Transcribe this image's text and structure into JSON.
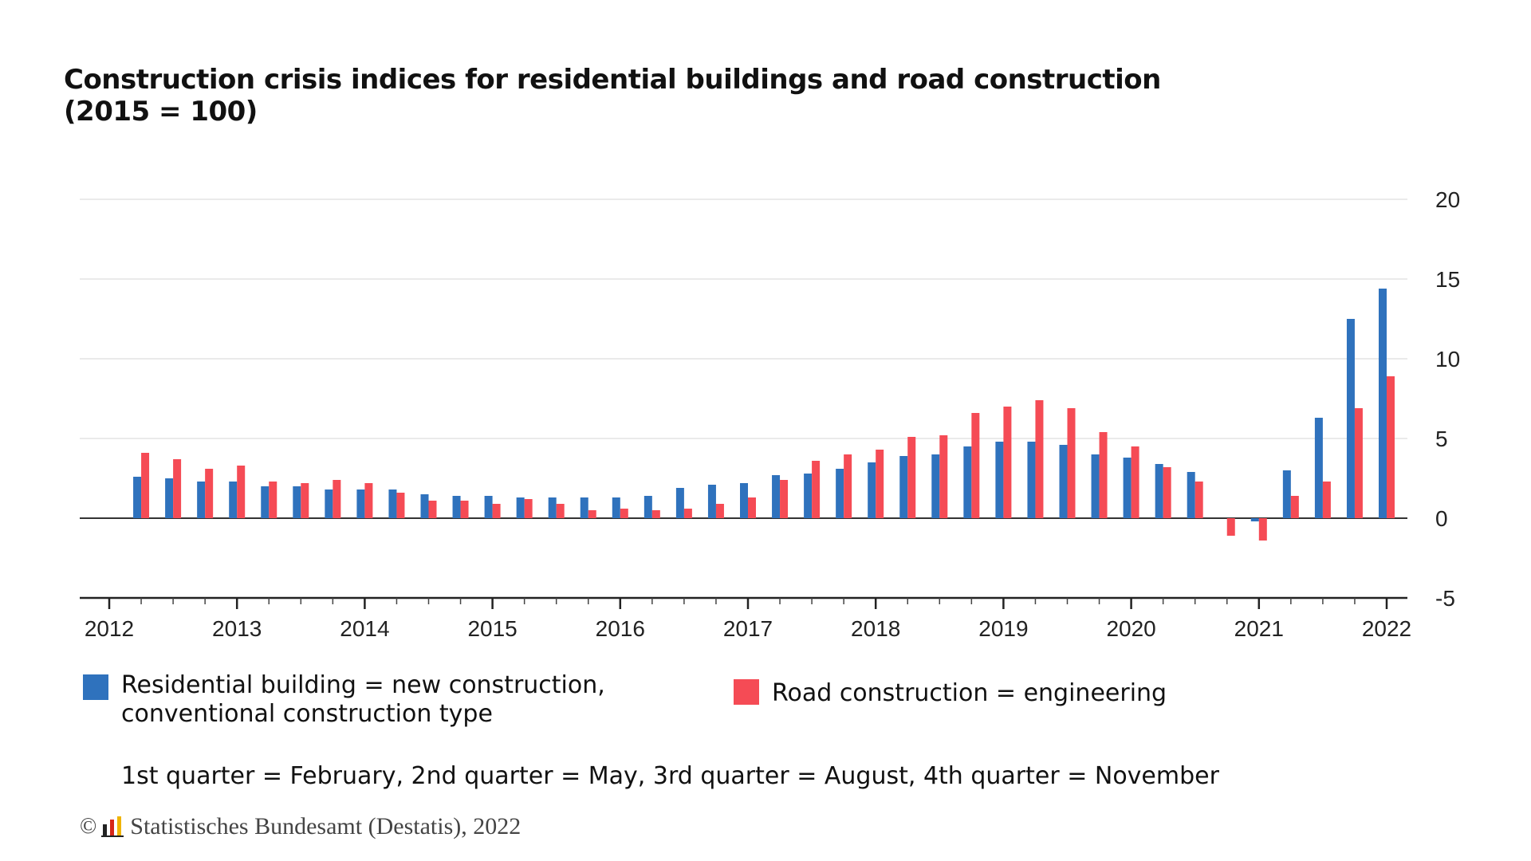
{
  "title": {
    "line1": "Construction crisis indices for residential buildings and road construction",
    "line2": "(2015 = 100)"
  },
  "legend": [
    {
      "label": "Residential building = new construction,\nconventional construction type",
      "color": "#2f72bd"
    },
    {
      "label": "Road construction = engineering",
      "color": "#f54b55"
    }
  ],
  "footnote": "1st quarter = February, 2nd quarter = May, 3rd quarter = August, 4th quarter = November",
  "source": {
    "copyright": "©",
    "text": "Statistisches Bundesamt (Destatis), 2022"
  },
  "chart_data": {
    "type": "bar",
    "title": "Construction crisis indices for residential buildings and road construction (2015 = 100)",
    "x_ticks": [
      "2012",
      "2013",
      "2014",
      "2015",
      "2016",
      "2017",
      "2018",
      "2019",
      "2020",
      "2021",
      "2022"
    ],
    "y_ticks": [
      20,
      15,
      10,
      5,
      0,
      -5
    ],
    "ylim": [
      -5,
      20
    ],
    "y_axis_side": "right",
    "grid": true,
    "legend_position": "bottom",
    "categories": [
      "2012 Q2",
      "2012 Q3",
      "2012 Q4",
      "2013 Q1",
      "2013 Q2",
      "2013 Q3",
      "2013 Q4",
      "2014 Q1",
      "2014 Q2",
      "2014 Q3",
      "2014 Q4",
      "2015 Q1",
      "2015 Q2",
      "2015 Q3",
      "2015 Q4",
      "2016 Q1",
      "2016 Q2",
      "2016 Q3",
      "2016 Q4",
      "2017 Q1",
      "2017 Q2",
      "2017 Q3",
      "2017 Q4",
      "2018 Q1",
      "2018 Q2",
      "2018 Q3",
      "2018 Q4",
      "2019 Q1",
      "2019 Q2",
      "2019 Q3",
      "2019 Q4",
      "2020 Q1",
      "2020 Q2",
      "2020 Q3",
      "2020 Q4",
      "2021 Q1",
      "2021 Q2",
      "2021 Q3",
      "2021 Q4",
      "2022 Q1"
    ],
    "series": [
      {
        "name": "Residential building = new construction, conventional construction type",
        "color": "#2f72bd",
        "values": [
          2.6,
          2.5,
          2.3,
          2.3,
          2.0,
          2.0,
          1.8,
          1.8,
          1.8,
          1.5,
          1.4,
          1.4,
          1.3,
          1.3,
          1.3,
          1.3,
          1.4,
          1.9,
          2.1,
          2.2,
          2.7,
          2.8,
          3.1,
          3.5,
          3.9,
          4.0,
          4.5,
          4.8,
          4.8,
          4.6,
          4.0,
          3.8,
          3.4,
          2.9,
          0.0,
          -0.2,
          3.0,
          6.3,
          12.5,
          14.4
        ]
      },
      {
        "name": "Road construction = engineering",
        "color": "#f54b55",
        "values": [
          4.1,
          3.7,
          3.1,
          3.3,
          2.3,
          2.2,
          2.4,
          2.2,
          1.6,
          1.1,
          1.1,
          0.9,
          1.2,
          0.9,
          0.5,
          0.6,
          0.5,
          0.6,
          0.9,
          1.3,
          2.4,
          3.6,
          4.0,
          4.3,
          5.1,
          5.2,
          6.6,
          7.0,
          7.4,
          6.9,
          5.4,
          4.5,
          3.2,
          2.3,
          -1.1,
          -1.4,
          1.4,
          2.3,
          6.9,
          8.9
        ]
      }
    ]
  }
}
